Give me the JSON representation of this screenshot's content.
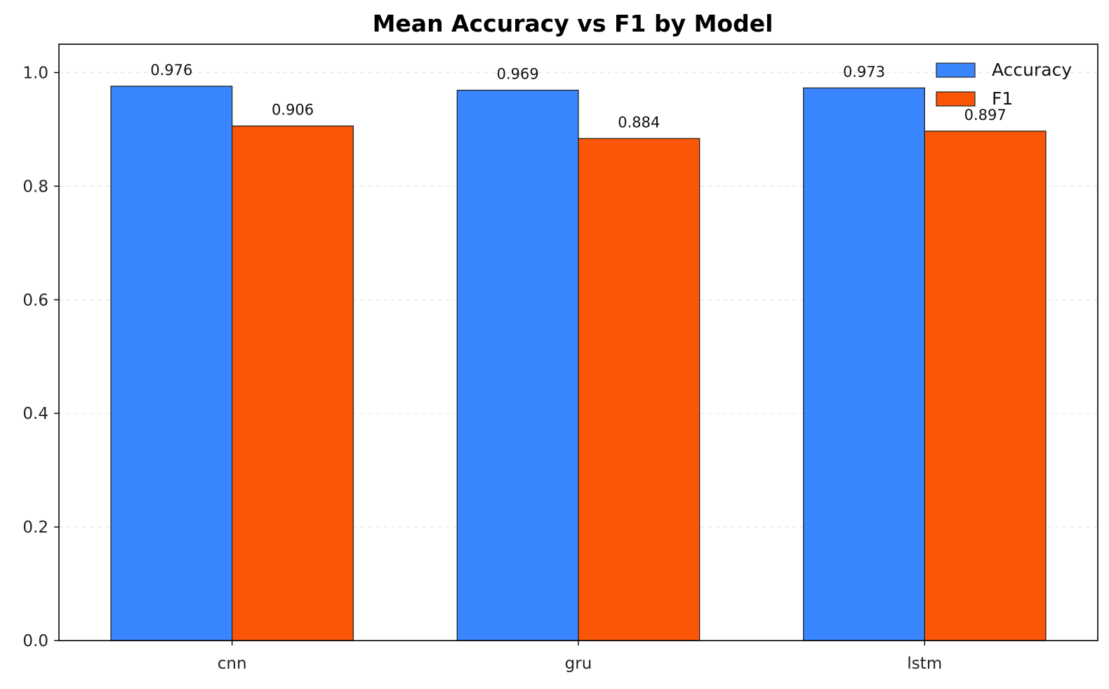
{
  "chart_data": {
    "type": "bar",
    "title": "Mean Accuracy vs F1 by Model",
    "xlabel": "",
    "ylabel": "",
    "categories": [
      "cnn",
      "gru",
      "lstm"
    ],
    "series": [
      {
        "name": "Accuracy",
        "values": [
          0.976,
          0.969,
          0.973
        ],
        "color": "#3a86ff"
      },
      {
        "name": "F1",
        "values": [
          0.906,
          0.884,
          0.897
        ],
        "color": "#fb5607"
      }
    ],
    "data_labels": [
      [
        "0.976",
        "0.969",
        "0.973"
      ],
      [
        "0.906",
        "0.884",
        "0.897"
      ]
    ],
    "ylim": [
      0,
      1.05
    ],
    "yticks": [
      0.0,
      0.2,
      0.4,
      0.6,
      0.8,
      1.0
    ],
    "ytick_labels": [
      "0.0",
      "0.2",
      "0.4",
      "0.6",
      "0.8",
      "1.0"
    ],
    "grid": true,
    "grid_axis": "y",
    "legend_position": "top-right",
    "edge_color": "#222222"
  }
}
